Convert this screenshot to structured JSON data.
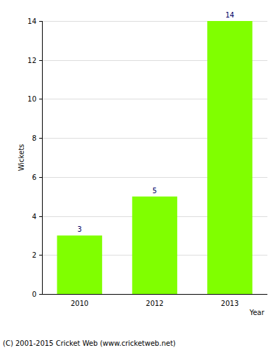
{
  "chart_data": {
    "type": "bar",
    "categories": [
      "2010",
      "2012",
      "2013"
    ],
    "values": [
      3,
      5,
      14
    ],
    "color": "#80ff00",
    "ylim": [
      0,
      14
    ],
    "yticks": [
      0,
      2,
      4,
      6,
      8,
      10,
      12,
      14
    ],
    "grid": true,
    "data_labels": true,
    "x_label": "Year",
    "y_label": "Wickets",
    "annotations": [
      "(C) 2001-2015 Cricket Web (www.cricketweb.net)"
    ]
  }
}
